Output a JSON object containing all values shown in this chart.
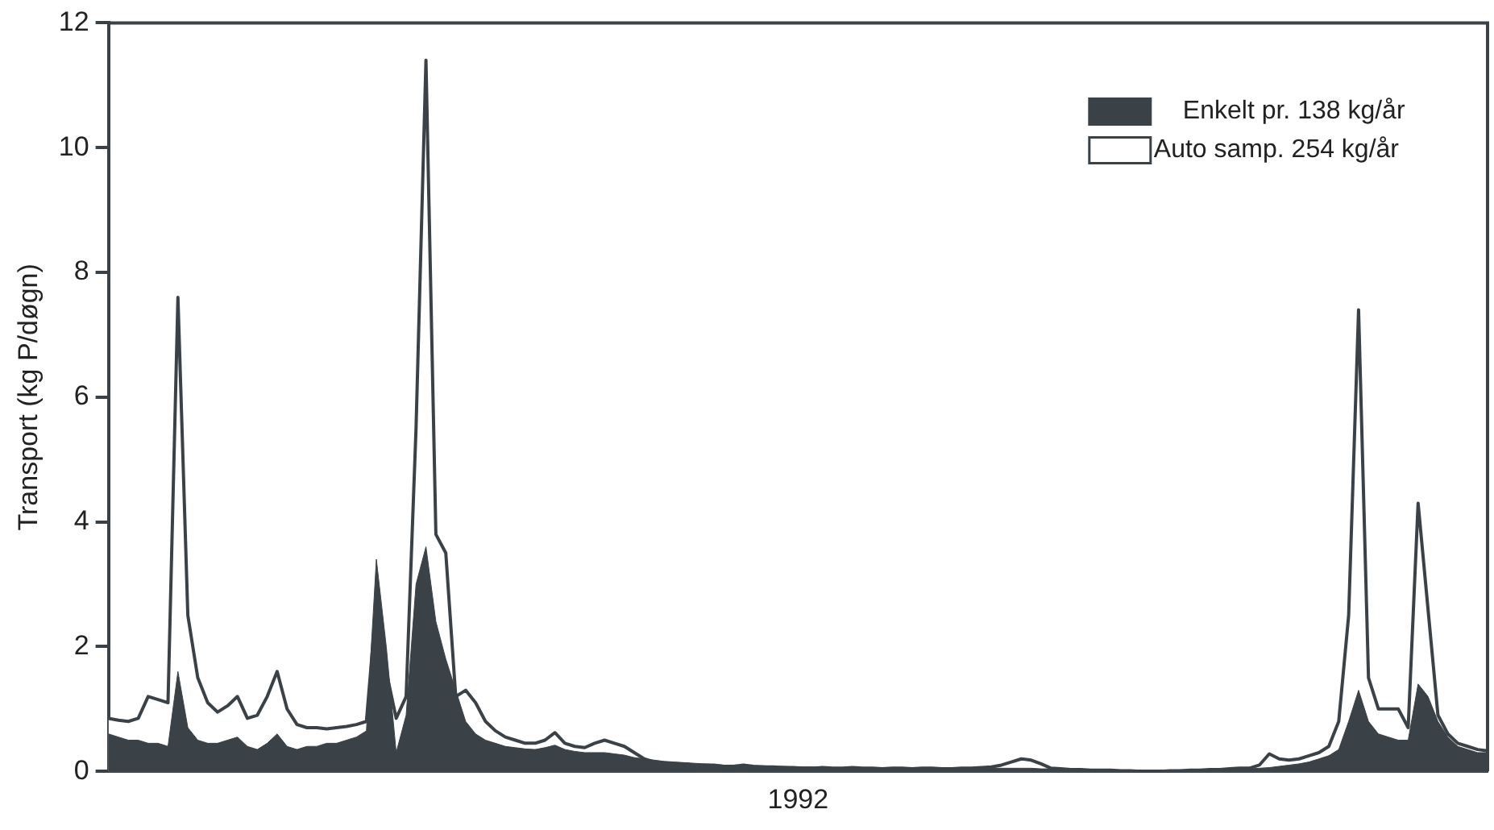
{
  "chart_data": {
    "type": "area",
    "xlabel": "1992",
    "ylabel": "Transport (kg P/døgn)",
    "categories": [
      null,
      null,
      null,
      null,
      null,
      null,
      null,
      null,
      null,
      null,
      null,
      null,
      null,
      null,
      null,
      null,
      null,
      null,
      null,
      null,
      null,
      null,
      null,
      null,
      null,
      null,
      null,
      null,
      null,
      null,
      null,
      null,
      null,
      null,
      null,
      null,
      null,
      null,
      null,
      null,
      null,
      null,
      null,
      null,
      null,
      null,
      null,
      null,
      null,
      null,
      null,
      null,
      null,
      null,
      null,
      null,
      null,
      null,
      null,
      null,
      null,
      null,
      null,
      null,
      null,
      null,
      null,
      null,
      null,
      null,
      null,
      null,
      null,
      null,
      null,
      null,
      null,
      null,
      null,
      null,
      null,
      null,
      null,
      null,
      null,
      null,
      null,
      null,
      null,
      null,
      null,
      null,
      null,
      null,
      null,
      null,
      null,
      null,
      null,
      null,
      null,
      null,
      null,
      null,
      null,
      null,
      null,
      null,
      null,
      null,
      null,
      null,
      null,
      null,
      null,
      null,
      null,
      null,
      null,
      null,
      null,
      null,
      null,
      null,
      null,
      null,
      null,
      null,
      null,
      null,
      null,
      null,
      null,
      null,
      null,
      null,
      null,
      null,
      null,
      null
    ],
    "series": [
      {
        "name": "Auto samp. 254 kg/år",
        "color": "#ffffff",
        "values": [
          0.85,
          0.82,
          0.8,
          0.85,
          1.2,
          1.15,
          1.1,
          7.6,
          2.5,
          1.5,
          1.1,
          0.95,
          1.05,
          1.2,
          0.85,
          0.9,
          1.2,
          1.6,
          1.0,
          0.75,
          0.7,
          0.7,
          0.68,
          0.7,
          0.72,
          0.75,
          0.8,
          2.7,
          1.6,
          0.85,
          1.2,
          5.5,
          11.4,
          3.8,
          3.5,
          1.2,
          1.3,
          1.1,
          0.8,
          0.65,
          0.55,
          0.5,
          0.45,
          0.45,
          0.5,
          0.62,
          0.45,
          0.4,
          0.38,
          0.45,
          0.5,
          0.45,
          0.4,
          0.3,
          0.2,
          0.15,
          0.13,
          0.12,
          0.12,
          0.1,
          0.1,
          0.1,
          0.08,
          0.08,
          0.1,
          0.08,
          0.07,
          0.07,
          0.06,
          0.06,
          0.05,
          0.05,
          0.06,
          0.05,
          0.05,
          0.06,
          0.05,
          0.05,
          0.04,
          0.05,
          0.05,
          0.04,
          0.05,
          0.05,
          0.04,
          0.04,
          0.05,
          0.05,
          0.06,
          0.07,
          0.1,
          0.15,
          0.2,
          0.18,
          0.12,
          0.05,
          0.04,
          0.03,
          0.03,
          0.02,
          0.02,
          0.02,
          0.01,
          0.01,
          0.0,
          0.0,
          0.0,
          0.01,
          0.01,
          0.02,
          0.02,
          0.03,
          0.03,
          0.04,
          0.05,
          0.05,
          0.1,
          0.28,
          0.2,
          0.18,
          0.2,
          0.25,
          0.3,
          0.4,
          0.8,
          2.5,
          7.4,
          1.5,
          1.0,
          1.0,
          1.0,
          0.7,
          4.3,
          2.6,
          0.9,
          0.6,
          0.45,
          0.4,
          0.35,
          0.33
        ]
      },
      {
        "name": "Enkelt pr. 138 kg/år",
        "color": "#3a4248",
        "values": [
          0.6,
          0.55,
          0.5,
          0.5,
          0.45,
          0.45,
          0.4,
          1.6,
          0.7,
          0.5,
          0.45,
          0.45,
          0.5,
          0.55,
          0.4,
          0.35,
          0.45,
          0.6,
          0.4,
          0.35,
          0.4,
          0.4,
          0.45,
          0.45,
          0.5,
          0.55,
          0.65,
          3.4,
          2.0,
          0.3,
          0.9,
          3.0,
          3.6,
          2.4,
          1.8,
          1.3,
          0.8,
          0.6,
          0.5,
          0.45,
          0.4,
          0.38,
          0.36,
          0.35,
          0.38,
          0.42,
          0.35,
          0.32,
          0.3,
          0.3,
          0.3,
          0.28,
          0.26,
          0.22,
          0.2,
          0.18,
          0.16,
          0.15,
          0.14,
          0.13,
          0.12,
          0.11,
          0.1,
          0.1,
          0.1,
          0.09,
          0.09,
          0.08,
          0.08,
          0.07,
          0.07,
          0.07,
          0.06,
          0.06,
          0.06,
          0.06,
          0.06,
          0.05,
          0.05,
          0.05,
          0.05,
          0.05,
          0.05,
          0.05,
          0.05,
          0.05,
          0.05,
          0.05,
          0.05,
          0.05,
          0.05,
          0.05,
          0.05,
          0.05,
          0.04,
          0.04,
          0.03,
          0.03,
          0.03,
          0.02,
          0.02,
          0.02,
          0.02,
          0.01,
          0.01,
          0.01,
          0.01,
          0.01,
          0.01,
          0.02,
          0.02,
          0.02,
          0.03,
          0.03,
          0.04,
          0.04,
          0.05,
          0.06,
          0.08,
          0.1,
          0.12,
          0.15,
          0.2,
          0.25,
          0.35,
          0.8,
          1.3,
          0.8,
          0.6,
          0.55,
          0.5,
          0.5,
          1.4,
          1.2,
          0.8,
          0.55,
          0.4,
          0.35,
          0.3,
          0.3
        ]
      }
    ],
    "ylim": [
      0,
      12
    ],
    "yticks": [
      0,
      2,
      4,
      6,
      8,
      10,
      12
    ],
    "grid": false,
    "legend": "top right"
  }
}
